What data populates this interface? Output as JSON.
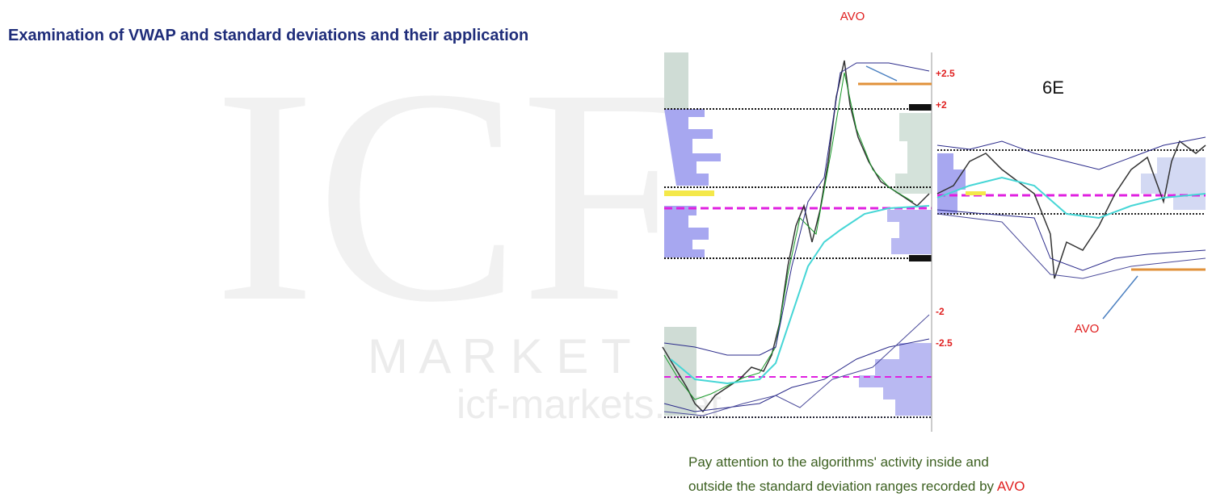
{
  "header": {
    "title": "Examination of VWAP and standard deviations and their application"
  },
  "watermark": {
    "letters": "M A R K E T",
    "site": "icf-markets.net"
  },
  "left_chart": {
    "top_annotation": "AVO",
    "levels": [
      "+2.5",
      "+2",
      "-2",
      "-2.5"
    ]
  },
  "right_chart": {
    "symbol": "6E",
    "bottom_annotation": "AVO"
  },
  "caption": {
    "line1": "Pay attention to the algorithms' activity inside and",
    "line2": "outside the standard deviation ranges recorded by ",
    "highlight": "AVO"
  }
}
